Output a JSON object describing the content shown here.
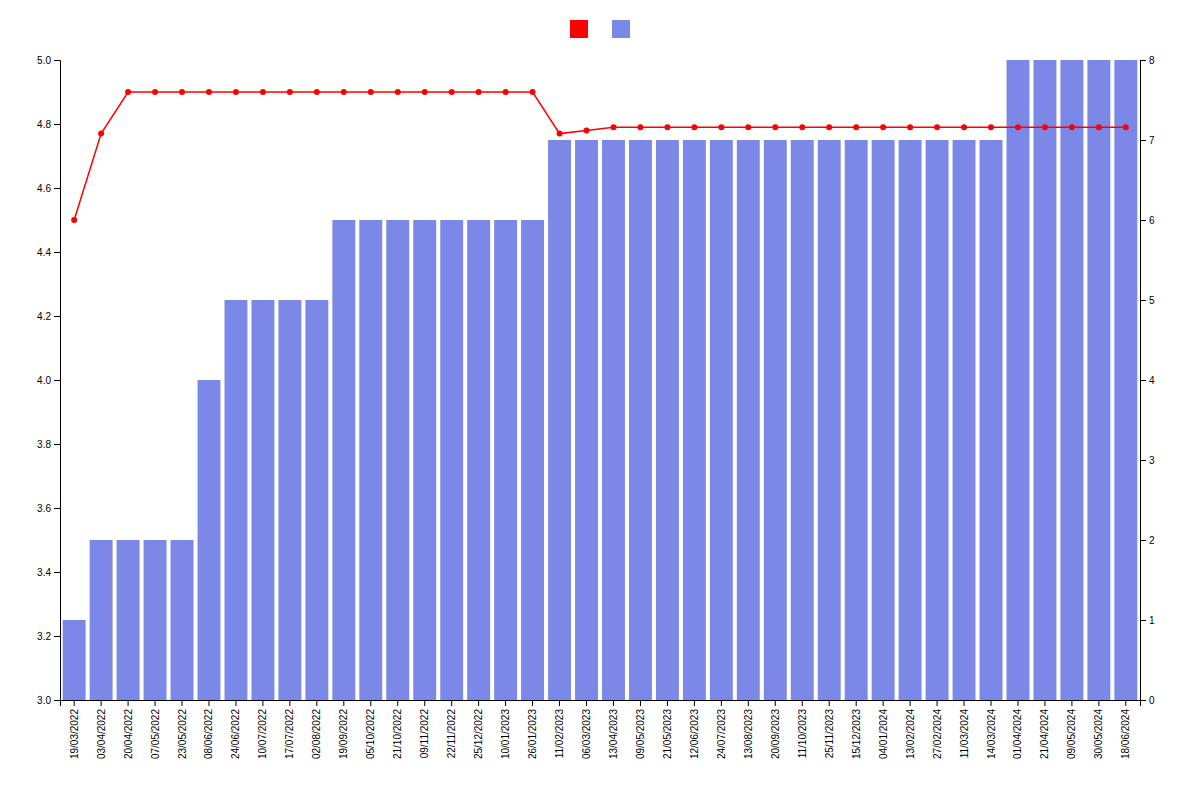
{
  "chart_data": {
    "type": "bar",
    "categories": [
      "19/03/2022",
      "03/04/2022",
      "20/04/2022",
      "07/05/2022",
      "23/05/2022",
      "08/06/2022",
      "24/06/2022",
      "10/07/2022",
      "17/07/2022",
      "02/08/2022",
      "19/09/2022",
      "05/10/2022",
      "21/10/2022",
      "09/11/2022",
      "22/11/2022",
      "25/12/2022",
      "10/01/2023",
      "26/01/2023",
      "11/02/2023",
      "06/03/2023",
      "13/04/2023",
      "09/05/2023",
      "21/05/2023",
      "12/06/2023",
      "24/07/2023",
      "13/08/2023",
      "20/09/2023",
      "11/10/2023",
      "25/11/2023",
      "15/12/2023",
      "04/01/2024",
      "13/02/2024",
      "27/02/2024",
      "11/03/2024",
      "14/03/2024",
      "01/04/2024",
      "21/04/2024",
      "09/05/2024",
      "30/05/2024",
      "18/06/2024"
    ],
    "series": [
      {
        "type": "bar",
        "color": "#7b88e8",
        "values": [
          3.25,
          3.5,
          3.5,
          3.5,
          3.5,
          4.0,
          4.25,
          4.25,
          4.25,
          4.25,
          4.5,
          4.5,
          4.5,
          4.5,
          4.5,
          4.5,
          4.5,
          4.5,
          4.75,
          4.75,
          4.75,
          4.75,
          4.75,
          4.75,
          4.75,
          4.75,
          4.75,
          4.75,
          4.75,
          4.75,
          4.75,
          4.75,
          4.75,
          4.75,
          4.75,
          5.0,
          5.0,
          5.0,
          5.0,
          5.0
        ]
      },
      {
        "type": "line",
        "color": "#ff0000",
        "marker": "circle",
        "values": [
          4.5,
          4.77,
          4.9,
          4.9,
          4.9,
          4.9,
          4.9,
          4.9,
          4.9,
          4.9,
          4.9,
          4.9,
          4.9,
          4.9,
          4.9,
          4.9,
          4.9,
          4.9,
          4.77,
          4.78,
          4.79,
          4.79,
          4.79,
          4.79,
          4.79,
          4.79,
          4.79,
          4.79,
          4.79,
          4.79,
          4.79,
          4.79,
          4.79,
          4.79,
          4.79,
          4.79,
          4.79,
          4.79,
          4.79,
          4.79
        ]
      }
    ],
    "ylim": [
      3.0,
      5.0
    ],
    "yticks": [
      {
        "value": 3.0,
        "label": "3.0"
      },
      3.2,
      3.4,
      3.6,
      3.8,
      {
        "value": 4.0,
        "label": "4.0"
      },
      4.2,
      4.4,
      4.6,
      4.8,
      {
        "value": 5.0,
        "label": "5.0"
      }
    ],
    "y2lim": [
      0,
      8
    ],
    "y2ticks": [
      0,
      1,
      2,
      3,
      4,
      5,
      6,
      7,
      8
    ],
    "grid": false,
    "legend": "top"
  }
}
